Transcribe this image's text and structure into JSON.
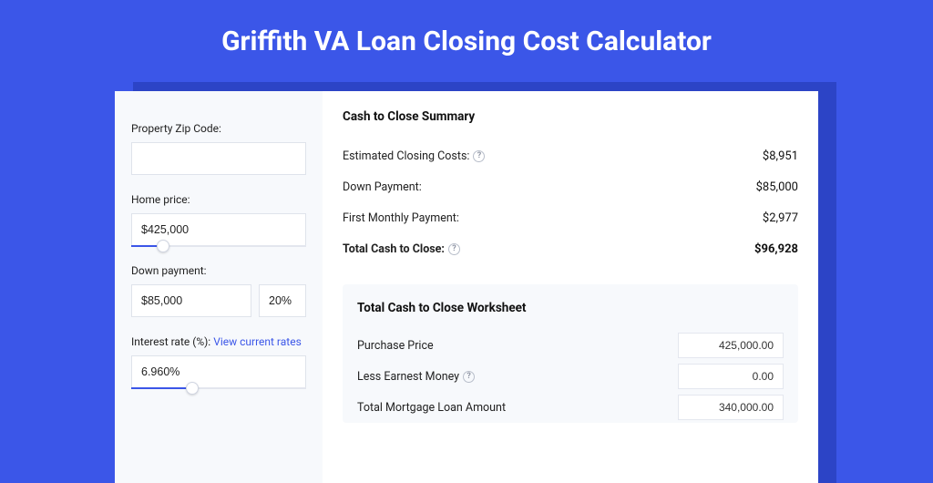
{
  "colors": {
    "page_bg": "#3b56e8",
    "panel_shadow": "#2c44c6",
    "panel_bg": "#ffffff",
    "left_bg": "#f7f9fc",
    "border": "#dfe3eb",
    "accent": "#3b56e8",
    "text": "#222222"
  },
  "title": "Griffith VA Loan Closing Cost Calculator",
  "left": {
    "zip_label": "Property Zip Code:",
    "zip_value": "",
    "home_price_label": "Home price:",
    "home_price_value": "$425,000",
    "home_price_slider": {
      "fill_pct": 18,
      "thumb_pct": 18
    },
    "down_payment_label": "Down payment:",
    "down_payment_value": "$85,000",
    "down_payment_pct": "20%",
    "interest_label": "Interest rate (%):",
    "rates_link": "View current rates",
    "interest_value": "6.960%",
    "interest_slider": {
      "fill_pct": 35,
      "thumb_pct": 35
    }
  },
  "summary": {
    "title": "Cash to Close Summary",
    "rows": [
      {
        "label": "Estimated Closing Costs:",
        "help": true,
        "value": "$8,951",
        "bold": false
      },
      {
        "label": "Down Payment:",
        "help": false,
        "value": "$85,000",
        "bold": false
      },
      {
        "label": "First Monthly Payment:",
        "help": false,
        "value": "$2,977",
        "bold": false
      },
      {
        "label": "Total Cash to Close:",
        "help": true,
        "value": "$96,928",
        "bold": true
      }
    ]
  },
  "worksheet": {
    "title": "Total Cash to Close Worksheet",
    "rows": [
      {
        "label": "Purchase Price",
        "help": false,
        "value": "425,000.00"
      },
      {
        "label": "Less Earnest Money",
        "help": true,
        "value": "0.00"
      },
      {
        "label": "Total Mortgage Loan Amount",
        "help": false,
        "value": "340,000.00"
      }
    ]
  }
}
